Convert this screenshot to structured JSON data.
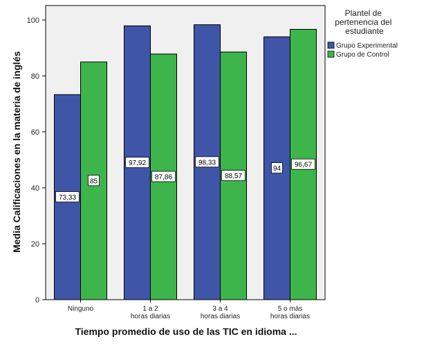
{
  "chart_data": {
    "type": "bar",
    "categories": [
      "Ninguno",
      "1 a 2 horas diarias",
      "3 a 4 horas diarias",
      "5 o más horas diarias"
    ],
    "series": [
      {
        "name": "Grupo Experimental",
        "values": [
          73.33,
          97.92,
          98.33,
          94
        ],
        "labels": [
          "73,33",
          "97,92",
          "98,33",
          "94"
        ]
      },
      {
        "name": "Grupo de Control",
        "values": [
          85,
          87.86,
          88.57,
          96.67
        ],
        "labels": [
          "85",
          "87,86",
          "88,57",
          "96,67"
        ]
      }
    ],
    "xlabel": "Tiempo promedio de uso de las TIC en idioma ...",
    "ylabel": "Media Calificaciones en la materia de inglés",
    "ylim": [
      0,
      105
    ],
    "yticks": [
      0,
      20,
      40,
      60,
      80,
      100
    ],
    "legend_title": "Plantel de pertenencia del estudiante",
    "legend_position": "right",
    "grid": false,
    "colors": {
      "Grupo Experimental": "#3f55a8",
      "Grupo de Control": "#3db54a",
      "plot_bg": "#f0f0f0"
    }
  }
}
